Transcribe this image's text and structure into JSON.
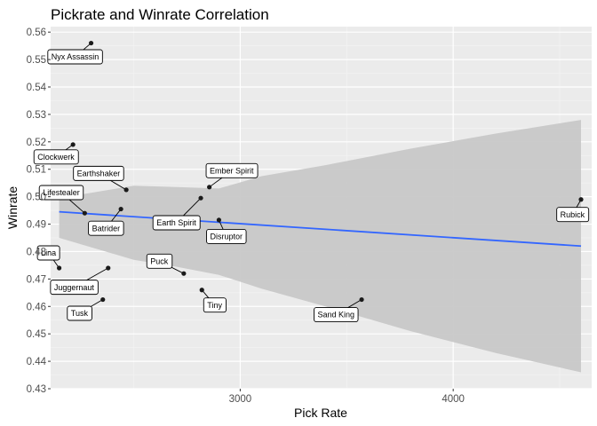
{
  "chart_data": {
    "type": "scatter",
    "title": "Pickrate and Winrate Correlation",
    "xlabel": "Pick Rate",
    "ylabel": "Winrate",
    "xlim": [
      2110,
      4650
    ],
    "ylim": [
      0.43,
      0.562
    ],
    "x_ticks": [
      3000,
      4000
    ],
    "x_tick_labels": [
      "3000",
      "4000"
    ],
    "y_ticks": [
      0.43,
      0.44,
      0.45,
      0.46,
      0.47,
      0.48,
      0.49,
      0.5,
      0.51,
      0.52,
      0.53,
      0.54,
      0.55,
      0.56
    ],
    "y_tick_labels": [
      "0.43",
      "0.44",
      "0.45",
      "0.46",
      "0.47",
      "0.48",
      "0.49",
      "0.50",
      "0.51",
      "0.52",
      "0.53",
      "0.54",
      "0.55",
      "0.56"
    ],
    "grid": true,
    "points": [
      {
        "label": "Nyx Assassin",
        "x": 2300,
        "y": 0.556,
        "lx": 2225,
        "ly": 0.551
      },
      {
        "label": "Clockwerk",
        "x": 2215,
        "y": 0.519,
        "lx": 2135,
        "ly": 0.5145
      },
      {
        "label": "Earthshaker",
        "x": 2465,
        "y": 0.5025,
        "lx": 2335,
        "ly": 0.5085
      },
      {
        "label": "Ember Spirit",
        "x": 2855,
        "y": 0.5035,
        "lx": 2960,
        "ly": 0.5095
      },
      {
        "label": "Lifestealer",
        "x": 2270,
        "y": 0.494,
        "lx": 2160,
        "ly": 0.5015
      },
      {
        "label": "Earth Spirit",
        "x": 2815,
        "y": 0.4995,
        "lx": 2700,
        "ly": 0.4905
      },
      {
        "label": "Batrider",
        "x": 2440,
        "y": 0.4955,
        "lx": 2370,
        "ly": 0.4885
      },
      {
        "label": "Disruptor",
        "x": 2900,
        "y": 0.4915,
        "lx": 2935,
        "ly": 0.4855
      },
      {
        "label": "Rubick",
        "x": 4600,
        "y": 0.499,
        "lx": 4560,
        "ly": 0.4935
      },
      {
        "label": "Lina",
        "x": 2150,
        "y": 0.474,
        "lx": 2100,
        "ly": 0.4795
      },
      {
        "label": "Juggernaut",
        "x": 2380,
        "y": 0.474,
        "lx": 2220,
        "ly": 0.467
      },
      {
        "label": "Puck",
        "x": 2735,
        "y": 0.472,
        "lx": 2620,
        "ly": 0.4765
      },
      {
        "label": "Tiny",
        "x": 2820,
        "y": 0.466,
        "lx": 2880,
        "ly": 0.4605
      },
      {
        "label": "Tusk",
        "x": 2355,
        "y": 0.4625,
        "lx": 2245,
        "ly": 0.4575
      },
      {
        "label": "Sand King",
        "x": 3570,
        "y": 0.4625,
        "lx": 3450,
        "ly": 0.457
      }
    ],
    "trend": {
      "x": [
        2150,
        4600
      ],
      "y": [
        0.4945,
        0.482
      ]
    },
    "confidence_band": {
      "upper": [
        [
          2150,
          0.4995
        ],
        [
          2500,
          0.504
        ],
        [
          2700,
          0.5035
        ],
        [
          2900,
          0.503
        ],
        [
          3100,
          0.5075
        ],
        [
          3400,
          0.5115
        ],
        [
          3800,
          0.5175
        ],
        [
          4200,
          0.523
        ],
        [
          4600,
          0.528
        ]
      ],
      "lower": [
        [
          4600,
          0.436
        ],
        [
          4200,
          0.443
        ],
        [
          3800,
          0.451
        ],
        [
          3400,
          0.46
        ],
        [
          3100,
          0.4665
        ],
        [
          2900,
          0.4715
        ],
        [
          2700,
          0.4745
        ],
        [
          2500,
          0.477
        ],
        [
          2150,
          0.485
        ]
      ]
    },
    "colors": {
      "panel": "#ebebeb",
      "grid_major": "#ffffff",
      "grid_minor": "#f3f3f3",
      "band": "#c8c8c8",
      "trend": "#3366ff",
      "point": "#1a1a1a"
    }
  }
}
